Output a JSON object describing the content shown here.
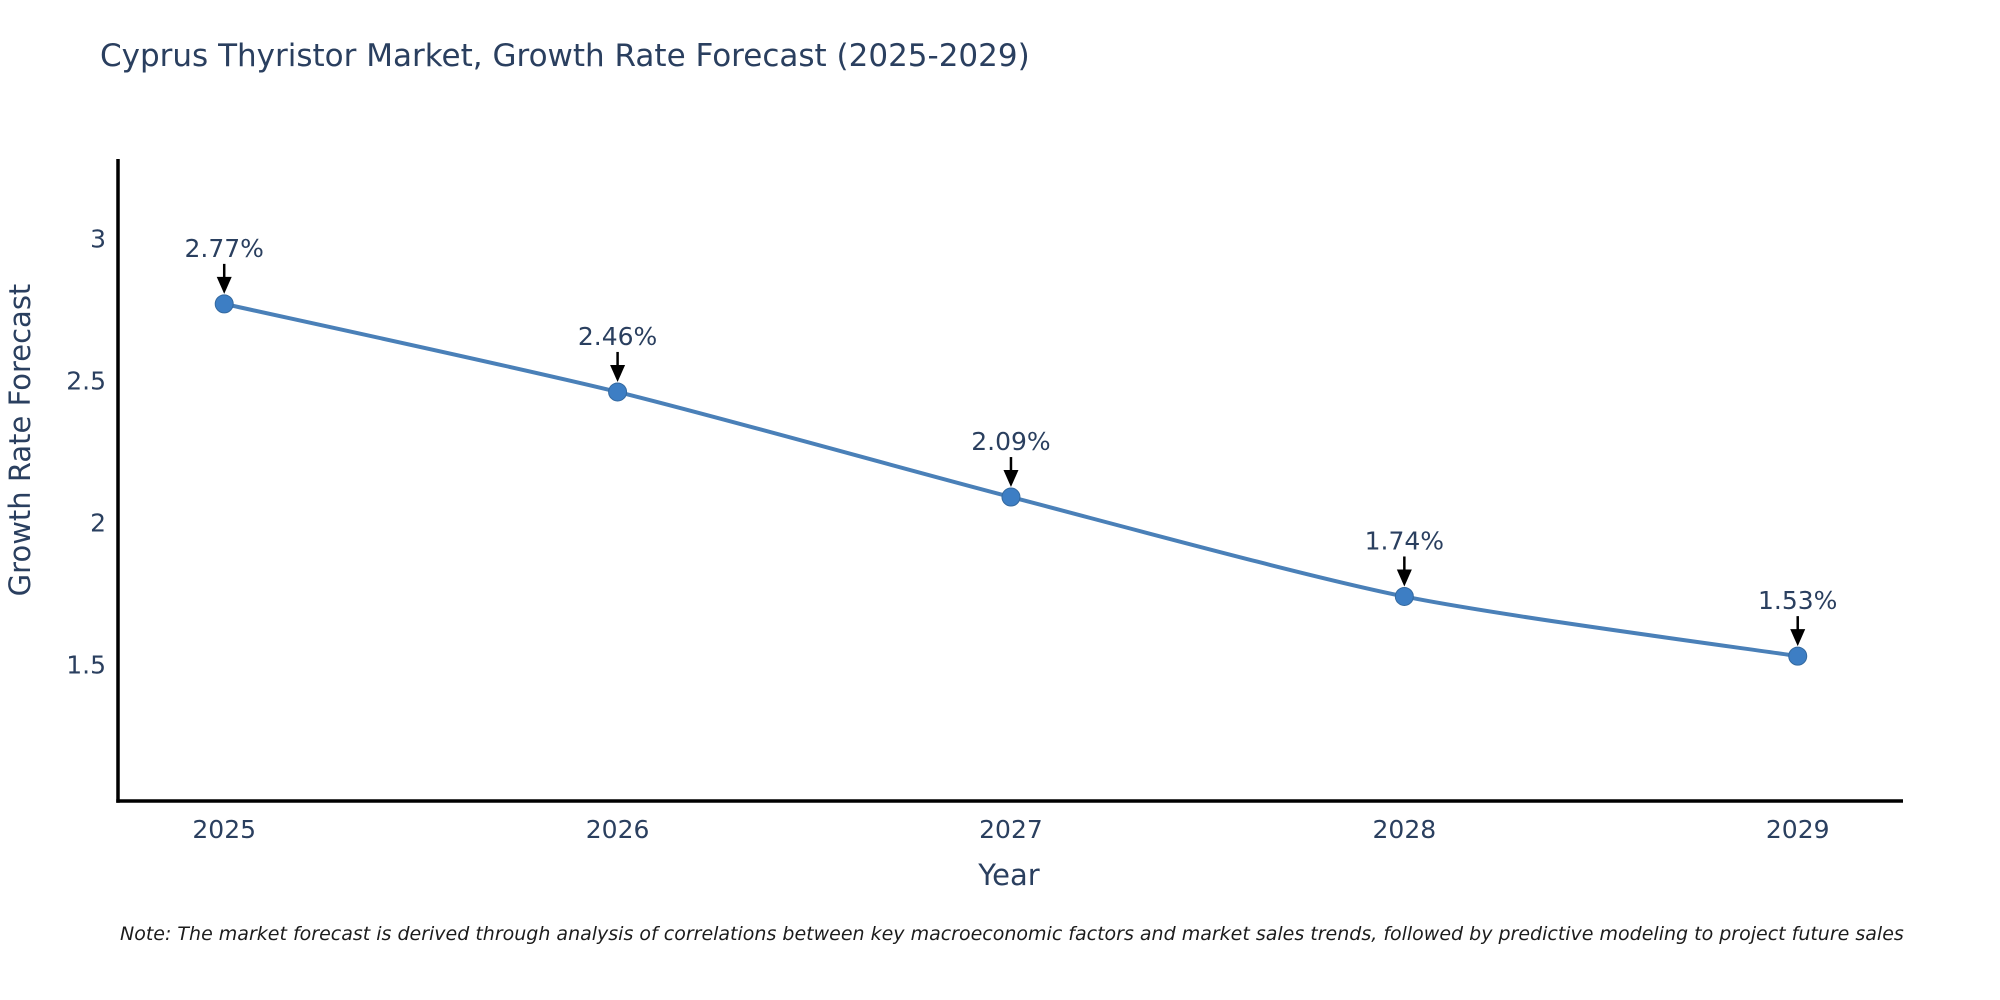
{
  "title": "Cyprus Thyristor Market, Growth Rate Forecast (2025-2029)",
  "note": "Note: The market forecast is derived through analysis of correlations between key macroeconomic factors and market sales trends, followed by predictive modeling to project future sales",
  "colors": {
    "text": "#2a3f5f",
    "axis": "#000000",
    "line": "#4a80b8",
    "marker": "#3d7ec4",
    "arrow": "#000000",
    "background": "#ffffff"
  },
  "chart_data": {
    "type": "line",
    "title": "Cyprus Thyristor Market, Growth Rate Forecast (2025-2029)",
    "xlabel": "Year",
    "ylabel": "Growth Rate Forecast",
    "categories": [
      2025,
      2026,
      2027,
      2028,
      2029
    ],
    "series": [
      {
        "name": "Growth Rate Forecast",
        "values": [
          2.77,
          2.46,
          2.09,
          1.74,
          1.53
        ]
      }
    ],
    "point_labels": [
      "2.77%",
      "2.46%",
      "2.09%",
      "1.74%",
      "1.53%"
    ],
    "yticks": [
      1.5,
      2,
      2.5,
      3
    ],
    "xlim": [
      2024.73,
      2029.26
    ],
    "ylim": [
      1.02,
      3.28
    ],
    "grid": false,
    "legend": "none",
    "line_shape": "spline",
    "marker_style": "circle",
    "annotation_arrows": true
  }
}
